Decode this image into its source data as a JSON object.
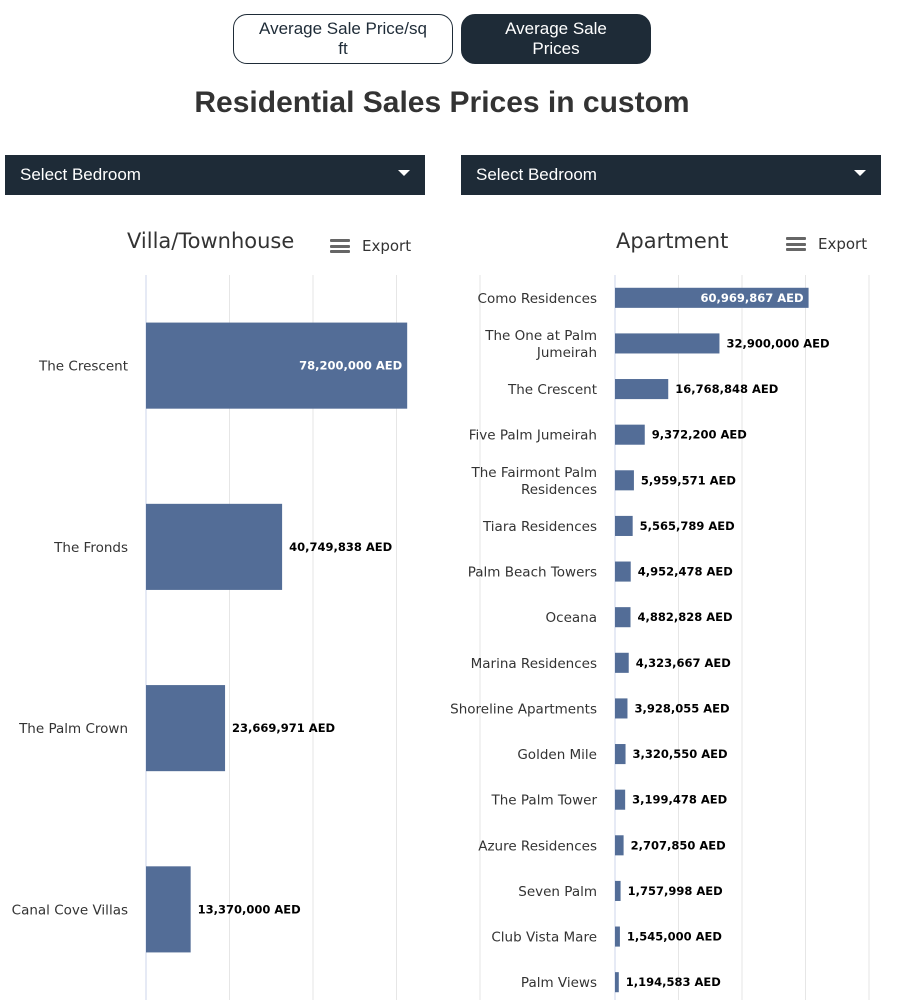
{
  "toggle": {
    "per_sqft_label": "Average Sale Price/sq ft",
    "prices_label": "Average Sale Prices"
  },
  "page_title": "Residential Sales Prices in custom",
  "dropdowns": {
    "left_label": "Select Bedroom",
    "right_label": "Select Bedroom"
  },
  "export_label": "Export",
  "colors": {
    "bar": "#536d97",
    "header": "#1e2b37",
    "grid": "#e6e6e6",
    "axis": "#ccd6eb"
  },
  "chart_data": [
    {
      "type": "bar",
      "orientation": "horizontal",
      "title": "Villa/Townhouse",
      "categories": [
        "The Crescent",
        "The Fronds",
        "The Palm Crown",
        "Canal Cove Villas"
      ],
      "values": [
        78200000,
        40749838,
        23669971,
        13370000
      ],
      "value_labels": [
        "78,200,000 AED",
        "40,749,838 AED",
        "23,669,971 AED",
        "13,370,000 AED"
      ],
      "xlim": [
        0,
        100000000
      ],
      "grid": true,
      "unit": "AED"
    },
    {
      "type": "bar",
      "orientation": "horizontal",
      "title": "Apartment",
      "categories": [
        "Como Residences",
        "The One at Palm Jumeirah",
        "The Crescent",
        "Five Palm Jumeirah",
        "The Fairmont Palm Residences",
        "Tiara Residences",
        "Palm Beach Towers",
        "Oceana",
        "Marina Residences",
        "Shoreline Apartments",
        "Golden Mile",
        "The Palm Tower",
        "Azure Residences",
        "Seven Palm",
        "Club Vista Mare",
        "Palm Views"
      ],
      "values": [
        60969867,
        32900000,
        16768848,
        9372200,
        5959571,
        5565789,
        4952478,
        4882828,
        4323667,
        3928055,
        3320550,
        3199478,
        2707850,
        1757998,
        1545000,
        1194583
      ],
      "value_labels": [
        "60,969,867 AED",
        "32,900,000 AED",
        "16,768,848 AED",
        "9,372,200 AED",
        "5,959,571 AED",
        "5,565,789 AED",
        "4,952,478 AED",
        "4,882,828 AED",
        "4,323,667 AED",
        "3,928,055 AED",
        "3,320,550 AED",
        "3,199,478 AED",
        "2,707,850 AED",
        "1,757,998 AED",
        "1,545,000 AED",
        "1,194,583 AED"
      ],
      "xlim": [
        0,
        80000000
      ],
      "grid": true,
      "unit": "AED"
    }
  ]
}
